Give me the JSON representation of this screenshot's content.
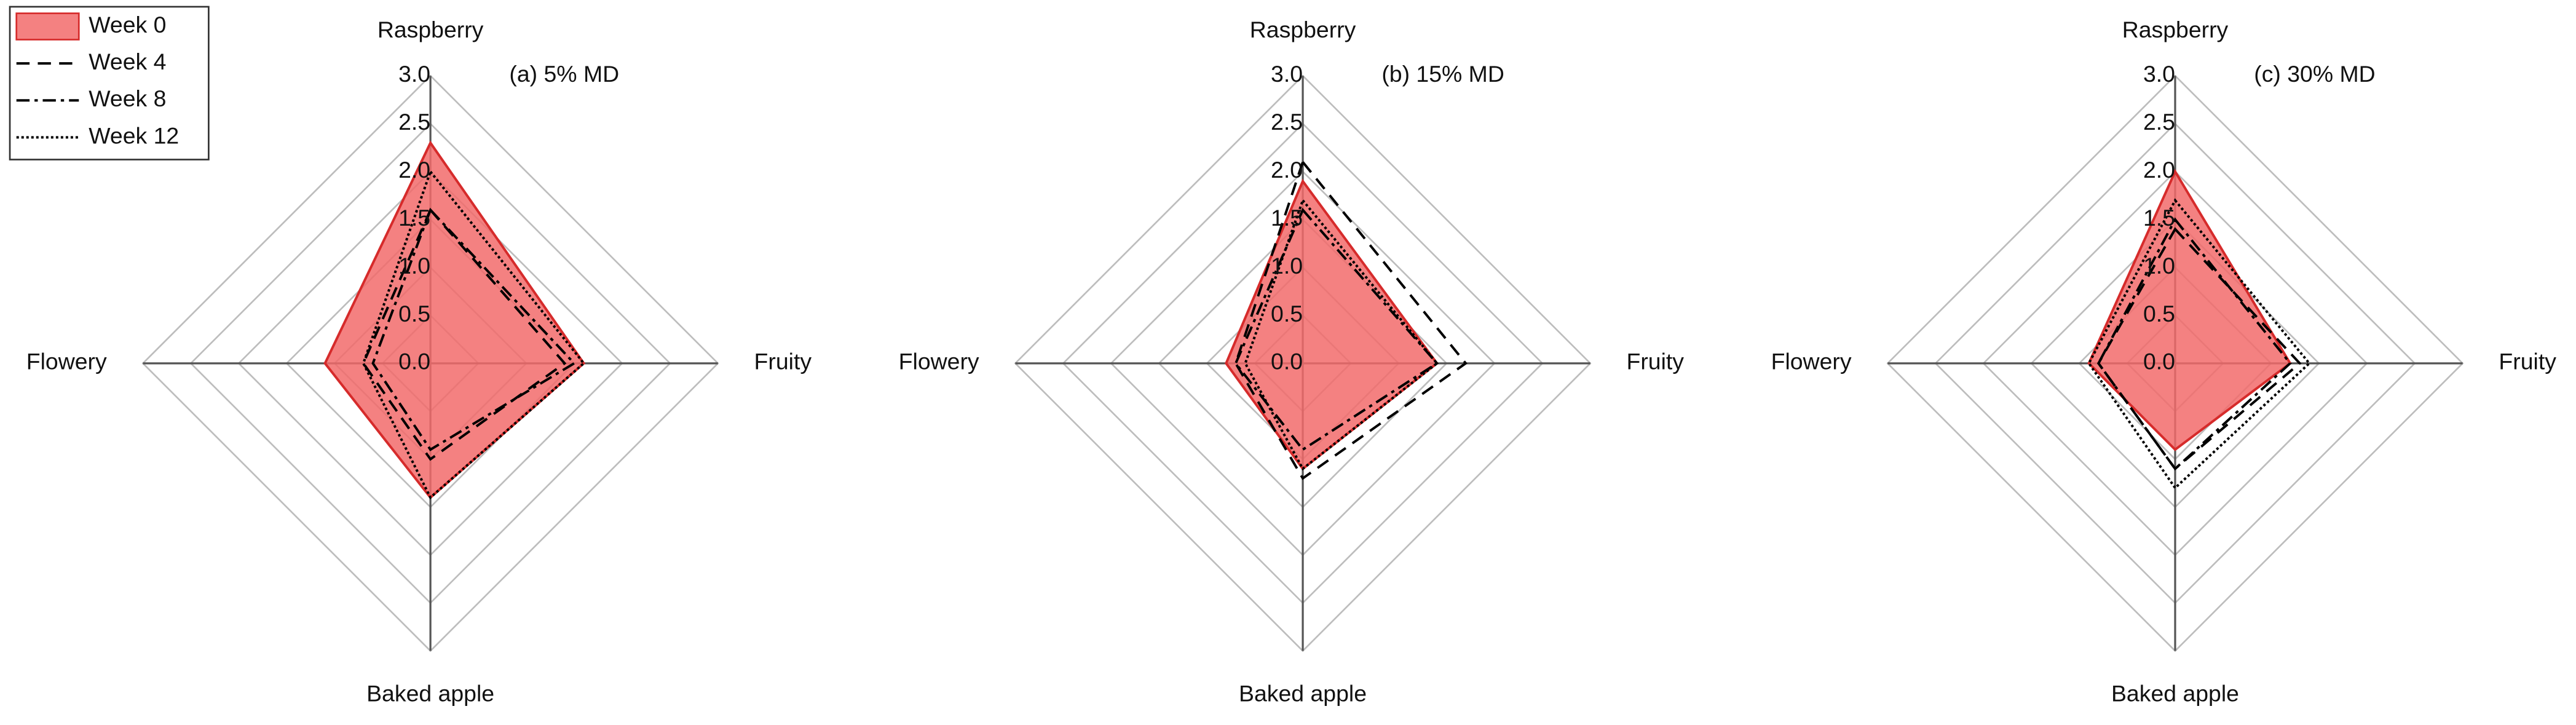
{
  "chart_data": [
    {
      "type": "radar",
      "title": "(a) 5% MD",
      "legend": "upper left",
      "categories": [
        "Raspberry",
        "Fruity",
        "Baked apple",
        "Flowery"
      ],
      "ylim": [
        0,
        3
      ],
      "yticks": [
        {
          "value": 0,
          "label": "0.0"
        },
        0.5,
        {
          "value": 1,
          "label": "1.0"
        },
        1.5,
        {
          "value": 2,
          "label": "2.0"
        },
        2.5,
        {
          "value": 3,
          "label": "3.0"
        }
      ],
      "grid": true,
      "series": [
        {
          "name": "Week 0",
          "color": "#f26b6b",
          "fill": true,
          "values": [
            2.3,
            1.6,
            1.4,
            1.1
          ]
        },
        {
          "name": "Week 4",
          "color": "#000000",
          "dash": "8 5",
          "values": [
            1.6,
            1.4,
            1.0,
            0.7
          ]
        },
        {
          "name": "Week 8",
          "color": "#000000",
          "dash": "8 3 2 3",
          "values": [
            1.6,
            1.5,
            0.9,
            0.6
          ]
        },
        {
          "name": "Week 12",
          "color": "#000000",
          "dash": "1.5 1.5",
          "values": [
            2.0,
            1.6,
            1.4,
            0.7
          ]
        }
      ]
    },
    {
      "type": "radar",
      "title": "(b) 15% MD",
      "categories": [
        "Raspberry",
        "Fruity",
        "Baked apple",
        "Flowery"
      ],
      "ylim": [
        0,
        3
      ],
      "yticks": [
        {
          "value": 0,
          "label": "0.0"
        },
        0.5,
        {
          "value": 1,
          "label": "1.0"
        },
        1.5,
        {
          "value": 2,
          "label": "2.0"
        },
        2.5,
        {
          "value": 3,
          "label": "3.0"
        }
      ],
      "grid": true,
      "series": [
        {
          "color": "#f26b6b",
          "fill": true,
          "values": [
            1.9,
            1.4,
            1.1,
            0.8
          ]
        },
        {
          "color": "#000000",
          "dash": "8 5",
          "values": [
            2.1,
            1.7,
            1.2,
            0.7
          ]
        },
        {
          "color": "#000000",
          "dash": "8 3 2 3",
          "values": [
            1.6,
            1.4,
            0.9,
            0.7
          ]
        },
        {
          "color": "#000000",
          "dash": "1.5 1.5",
          "values": [
            1.7,
            1.4,
            1.1,
            0.6
          ]
        }
      ]
    },
    {
      "type": "radar",
      "title": "(c) 30% MD",
      "categories": [
        "Raspberry",
        "Fruity",
        "Baked apple",
        "Flowery"
      ],
      "ylim": [
        0,
        3
      ],
      "yticks": [
        {
          "value": 0,
          "label": "0.0"
        },
        0.5,
        {
          "value": 1,
          "label": "1.0"
        },
        1.5,
        {
          "value": 2,
          "label": "2.0"
        },
        2.5,
        {
          "value": 3,
          "label": "3.0"
        }
      ],
      "grid": true,
      "series": [
        {
          "color": "#f26b6b",
          "fill": true,
          "values": [
            2.0,
            1.2,
            0.9,
            0.9
          ]
        },
        {
          "color": "#000000",
          "dash": "8 5",
          "values": [
            1.4,
            1.3,
            1.1,
            0.8
          ]
        },
        {
          "color": "#000000",
          "dash": "8 3 2 3",
          "values": [
            1.5,
            1.2,
            1.1,
            0.8
          ]
        },
        {
          "color": "#000000",
          "dash": "1.5 1.5",
          "values": [
            1.7,
            1.4,
            1.3,
            0.9
          ]
        }
      ]
    }
  ]
}
